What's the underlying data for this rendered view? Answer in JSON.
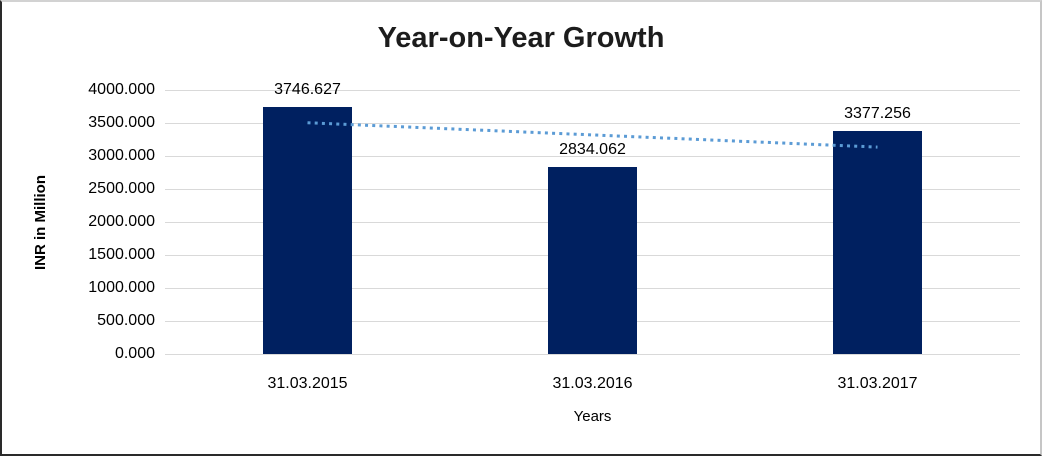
{
  "chart_data": {
    "type": "bar",
    "title": "Year-on-Year Growth",
    "xlabel": "Years",
    "ylabel": "INR in Million",
    "categories": [
      "31.03.2015",
      "31.03.2016",
      "31.03.2017"
    ],
    "values": [
      3746.627,
      2834.062,
      3377.256
    ],
    "value_labels": [
      "3746.627",
      "2834.062",
      "3377.256"
    ],
    "ylim": [
      0,
      4000
    ],
    "ytick_labels": [
      "4000.000",
      "3500.000",
      "3000.000",
      "2500.000",
      "2000.000",
      "1500.000",
      "1000.000",
      "500.000",
      "0.000"
    ],
    "grid": true,
    "legend": "none",
    "bar_color": "#002060",
    "gridline_color": "#d9d9d9",
    "trendline": {
      "type": "linear",
      "style": "dotted",
      "color": "#5b9bd5",
      "start_value": 3504.0,
      "end_value": 3134.6
    }
  }
}
